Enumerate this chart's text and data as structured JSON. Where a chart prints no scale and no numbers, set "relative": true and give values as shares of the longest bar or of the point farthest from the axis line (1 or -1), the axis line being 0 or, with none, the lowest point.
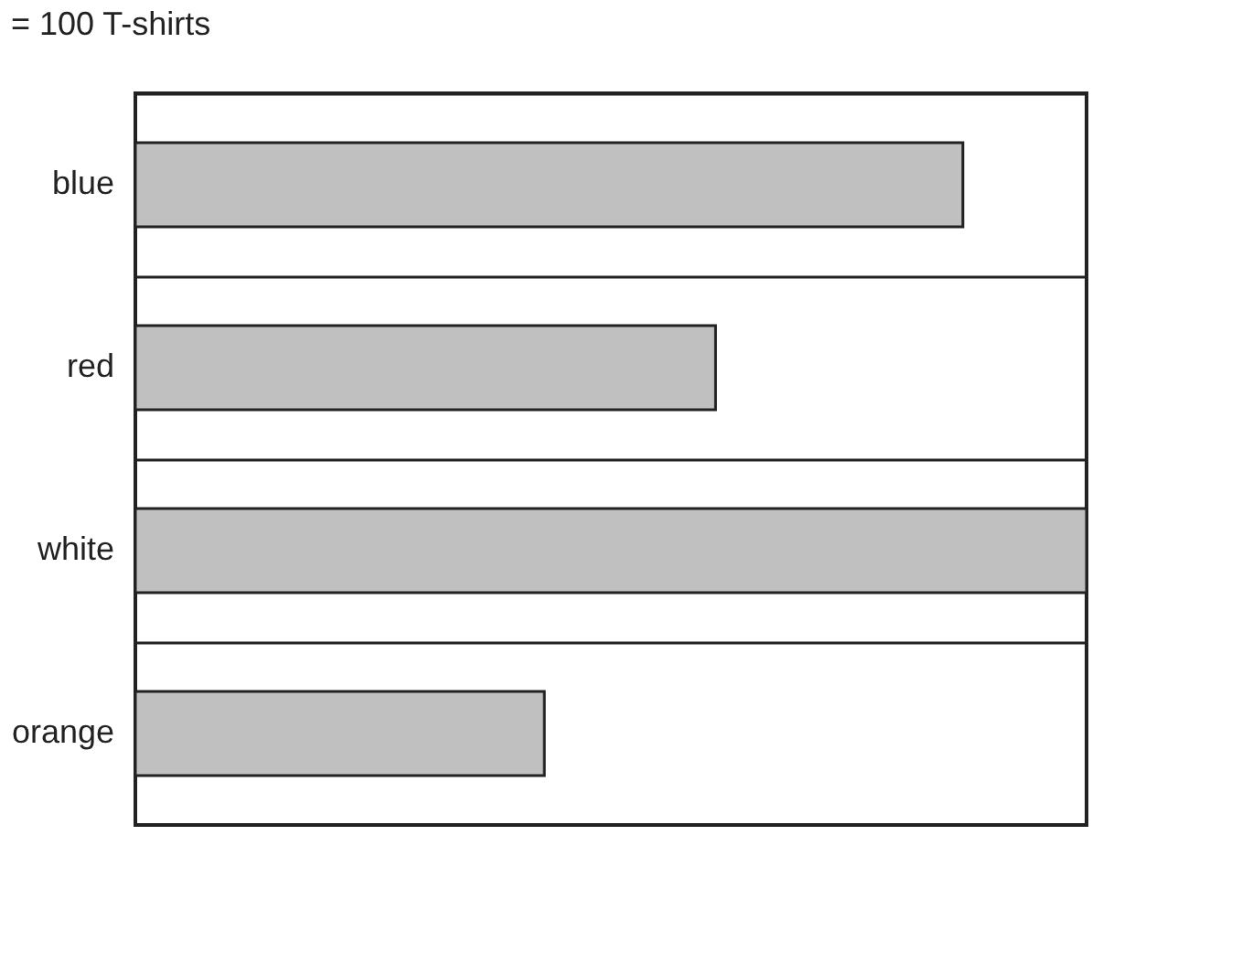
{
  "chart_data": {
    "type": "bar",
    "orientation": "horizontal",
    "relative": true,
    "categories": [
      "blue",
      "red",
      "white",
      "orange"
    ],
    "values": [
      0.87,
      0.61,
      1,
      0.43
    ],
    "color": "#c0c0c0",
    "annotations": [
      "= 100 T-shirts"
    ],
    "grid": "y"
  }
}
